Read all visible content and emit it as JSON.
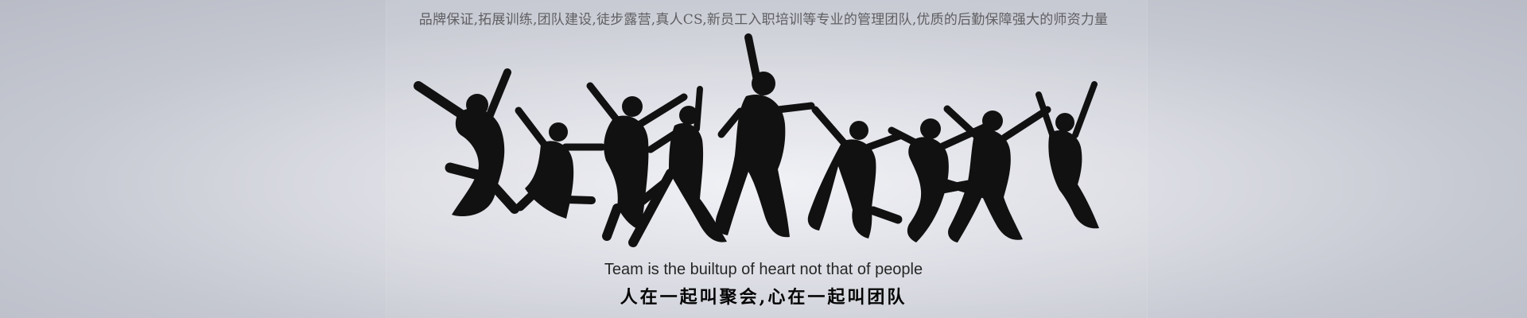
{
  "banner": {
    "top_slogan": "品牌保证,拓展训练,团队建设,徒步露营,真人CS,新员工入职培训等专业的管理团队,优质的后勤保障强大的师资力量",
    "english_caption": "Team is the builtup of  heart not that of people",
    "chinese_caption": "人在一起叫聚会,心在一起叫团队"
  },
  "colors": {
    "silhouette": "#111111",
    "top_text": "#5f5f63",
    "caption_text": "#262626"
  },
  "icons": {
    "main_graphic": "jumping-people-silhouette-icon"
  }
}
